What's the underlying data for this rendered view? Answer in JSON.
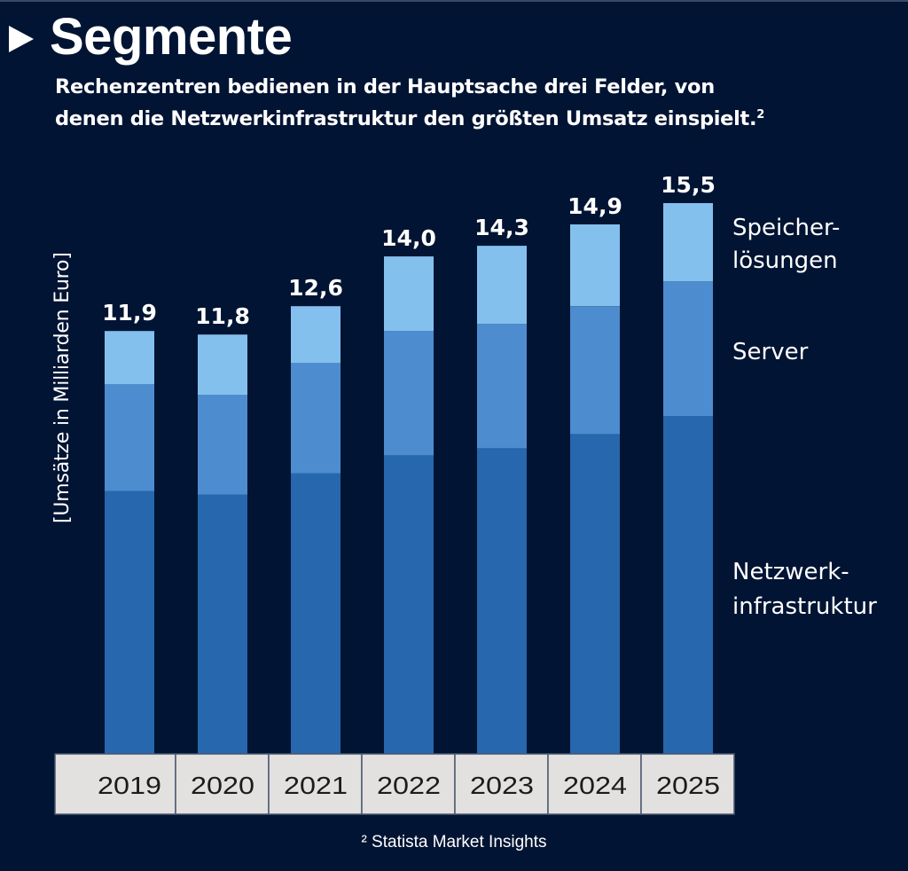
{
  "header": {
    "title": "Segmente",
    "subtitle_line1": "Rechenzentren bedienen in der Hauptsache drei Felder, von",
    "subtitle_line2": "denen die Netzwerkinfrastruktur den größten Umsatz einspielt.",
    "subtitle_footnote_mark": "2"
  },
  "footnote": "² Statista Market Insights",
  "colors": {
    "background": "#021433",
    "netzwerk": "#2667ad",
    "server": "#4e8cd0",
    "speicher": "#84c0ee",
    "year_box": "#e2e1df"
  },
  "chart_data": {
    "type": "bar",
    "stacked": true,
    "title": "Segmente",
    "xlabel": "",
    "ylabel": "[Umsätze in Milliarden Euro]",
    "ylim": [
      0,
      15.5
    ],
    "grid": false,
    "legend": "right (inline labels)",
    "categories": [
      "2019",
      "2020",
      "2021",
      "2022",
      "2023",
      "2024",
      "2025"
    ],
    "totals_labels": [
      "11,9",
      "11,8",
      "12,6",
      "14,0",
      "14,3",
      "14,9",
      "15,5"
    ],
    "totals": [
      11.9,
      11.8,
      12.6,
      14.0,
      14.3,
      14.9,
      15.5
    ],
    "series": [
      {
        "name": "Netzwerkinfrastruktur",
        "label_line1": "Netzwerk-",
        "label_line2": "infrastruktur",
        "values": [
          7.4,
          7.3,
          7.9,
          8.4,
          8.6,
          9.0,
          9.5
        ]
      },
      {
        "name": "Server",
        "label_line1": "Server",
        "label_line2": "",
        "values": [
          3.0,
          2.8,
          3.1,
          3.5,
          3.5,
          3.6,
          3.8
        ]
      },
      {
        "name": "Speicherlösungen",
        "label_line1": "Speicher-",
        "label_line2": "lösungen",
        "values": [
          1.5,
          1.7,
          1.6,
          2.1,
          2.2,
          2.3,
          2.2
        ]
      }
    ]
  }
}
